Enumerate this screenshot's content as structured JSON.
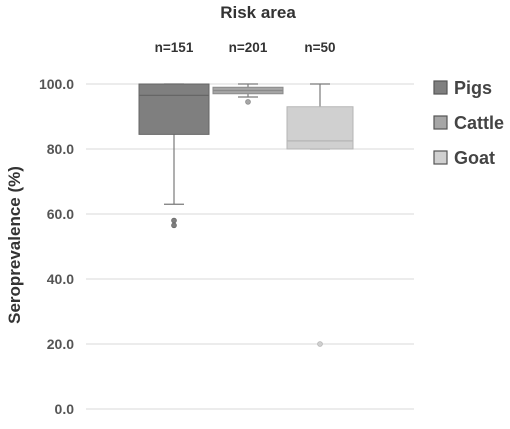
{
  "chart_data": {
    "type": "box",
    "title": "Risk area",
    "ylabel": "Seroprevalence (%)",
    "xlabel": "",
    "ylim": [
      0,
      100
    ],
    "yticks": [
      "0.0",
      "20.0",
      "40.0",
      "60.0",
      "80.0",
      "100.0"
    ],
    "grid": true,
    "legend_position": "right",
    "series": [
      {
        "name": "Pigs",
        "n_label": "n=151",
        "color": "#7f7f7f",
        "whisker_low": 63,
        "q1": 84.5,
        "median": 96.5,
        "q3": 100,
        "whisker_high": 100,
        "outliers": [
          58,
          56.5
        ]
      },
      {
        "name": "Cattle",
        "n_label": "n=201",
        "color": "#a6a6a6",
        "whisker_low": 96,
        "q1": 97,
        "median": 98,
        "q3": 99,
        "whisker_high": 100,
        "outliers": [
          94.5
        ]
      },
      {
        "name": "Goat",
        "n_label": "n=50",
        "color": "#d0d0d0",
        "whisker_low": 80,
        "q1": 80,
        "median": 82.5,
        "q3": 93,
        "whisker_high": 100,
        "outliers": [
          20
        ]
      }
    ]
  }
}
